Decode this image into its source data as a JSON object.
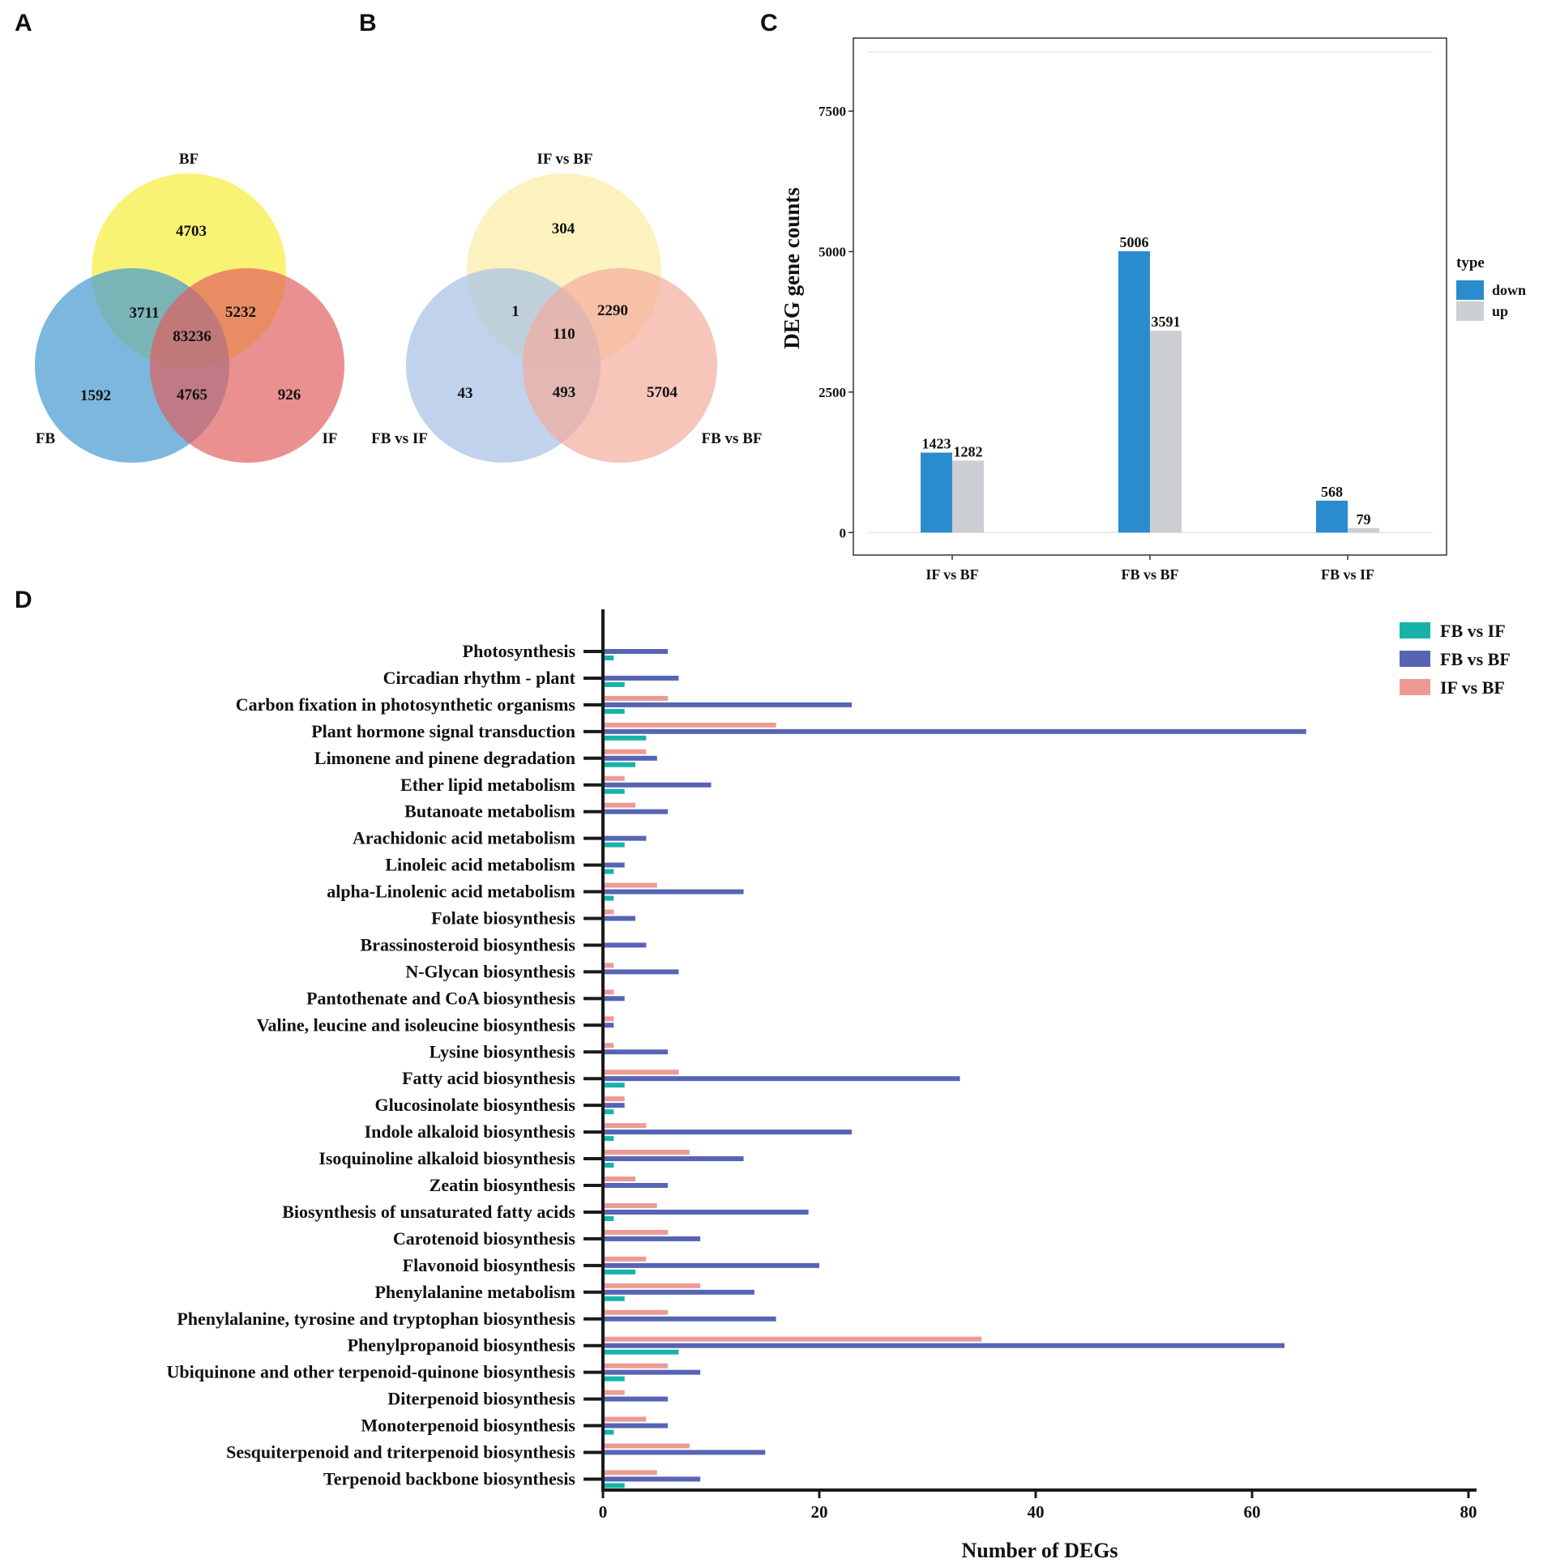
{
  "panels": {
    "a": "A",
    "b": "B",
    "c": "C",
    "d": "D"
  },
  "colors": {
    "bf": "#f7ef4e",
    "fb": "#4a9bd1",
    "if": "#e25b5b",
    "ifbf": "#fbf0b5",
    "fbif": "#a9c2e5",
    "fbbf": "#f3aa99",
    "down": "#2b8ccd",
    "up": "#cbcfd3",
    "fbvsif": "#17b3aa",
    "fbvsbf": "#5764b4",
    "ifvsbf": "#ec9b94"
  },
  "venn_a": {
    "sets": {
      "bf": "BF",
      "fb": "FB",
      "if": "IF"
    },
    "regions": {
      "bf_only": "4703",
      "fb_only": "1592",
      "if_only": "926",
      "bf_fb": "3711",
      "bf_if": "5232",
      "fb_if": "4765",
      "all": "83236"
    }
  },
  "venn_b": {
    "sets": {
      "ifbf": "IF vs BF",
      "fbif": "FB vs IF",
      "fbbf": "FB vs BF"
    },
    "regions": {
      "ifbf_only": "304",
      "fbif_only": "43",
      "fbbf_only": "5704",
      "ifbf_fbif": "1",
      "ifbf_fbbf": "2290",
      "fbif_fbbf": "493",
      "all": "110"
    }
  },
  "chart_data": [
    {
      "type": "bar",
      "title": "",
      "xlabel": "",
      "ylabel": "DEG gene counts",
      "categories": [
        "IF vs BF",
        "FB vs BF",
        "FB vs IF"
      ],
      "series": [
        {
          "name": "down",
          "values": [
            1423,
            5006,
            568
          ]
        },
        {
          "name": "up",
          "values": [
            1282,
            3591,
            79
          ]
        }
      ],
      "ylim": [
        -400,
        8800
      ],
      "yticks": [
        0,
        2500,
        5000,
        7500
      ],
      "legend": {
        "title": "type",
        "labels": [
          "down",
          "up"
        ],
        "placement": "right"
      }
    },
    {
      "type": "bar",
      "orientation": "horizontal",
      "title": "",
      "xlabel": "Number of DEGs",
      "ylabel": "",
      "xlim": [
        0,
        80
      ],
      "xticks": [
        0,
        20,
        40,
        60,
        80
      ],
      "legend": {
        "placement": "top-right"
      },
      "categories": [
        "Photosynthesis",
        "Circadian rhythm - plant",
        "Carbon fixation in photosynthetic organisms",
        "Plant hormone signal transduction",
        "Limonene and pinene degradation",
        "Ether lipid metabolism",
        "Butanoate metabolism",
        "Arachidonic acid metabolism",
        "Linoleic acid metabolism",
        "alpha-Linolenic acid metabolism",
        "Folate biosynthesis",
        "Brassinosteroid biosynthesis",
        "N-Glycan biosynthesis",
        "Pantothenate and CoA biosynthesis",
        "Valine, leucine and isoleucine biosynthesis",
        "Lysine biosynthesis",
        "Fatty acid biosynthesis",
        "Glucosinolate biosynthesis",
        "Indole alkaloid biosynthesis",
        "Isoquinoline alkaloid biosynthesis",
        "Zeatin biosynthesis",
        "Biosynthesis of unsaturated fatty acids",
        "Carotenoid biosynthesis",
        "Flavonoid biosynthesis",
        "Phenylalanine metabolism",
        "Phenylalanine, tyrosine and tryptophan biosynthesis",
        "Phenylpropanoid biosynthesis",
        "Ubiquinone and other terpenoid-quinone biosynthesis",
        "Diterpenoid biosynthesis",
        "Monoterpenoid biosynthesis",
        "Sesquiterpenoid and triterpenoid biosynthesis",
        "Terpenoid backbone biosynthesis"
      ],
      "series": [
        {
          "name": "IF  vs BF",
          "values": [
            0,
            0,
            6,
            16,
            4,
            2,
            3,
            0,
            0,
            5,
            1,
            0,
            1,
            1,
            1,
            1,
            7,
            2,
            4,
            8,
            3,
            5,
            6,
            4,
            9,
            6,
            35,
            6,
            2,
            4,
            8,
            5
          ]
        },
        {
          "name": "FB vs BF",
          "values": [
            6,
            7,
            23,
            65,
            5,
            10,
            6,
            4,
            2,
            13,
            3,
            4,
            7,
            2,
            1,
            6,
            33,
            2,
            23,
            13,
            6,
            19,
            9,
            20,
            14,
            16,
            63,
            9,
            6,
            6,
            15,
            9
          ]
        },
        {
          "name": "FB vs IF",
          "values": [
            1,
            2,
            2,
            4,
            3,
            2,
            0,
            2,
            1,
            1,
            0,
            0,
            0,
            0,
            0,
            0,
            2,
            1,
            1,
            1,
            0,
            1,
            0,
            3,
            2,
            0,
            7,
            2,
            0,
            1,
            0,
            2
          ]
        }
      ]
    }
  ]
}
